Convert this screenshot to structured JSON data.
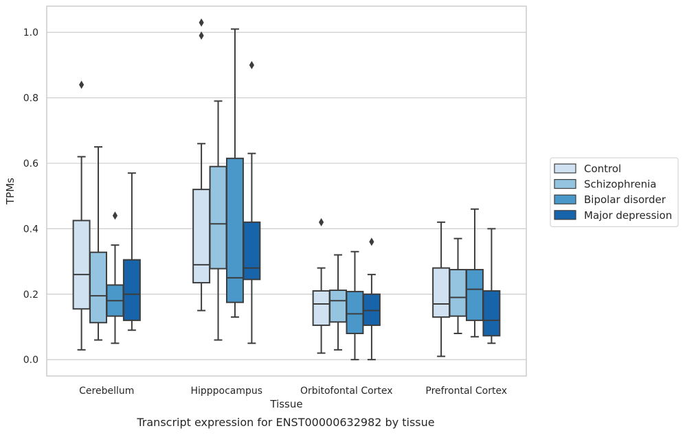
{
  "caption": "Transcript expression for ENST00000632982 by tissue",
  "chart_data": {
    "type": "boxplot",
    "xlabel": "Tissue",
    "ylabel": "TPMs",
    "ylim": [
      -0.05,
      1.08
    ],
    "yticks": [
      0.0,
      0.2,
      0.4,
      0.6,
      0.8,
      1.0
    ],
    "ytick_labels": [
      "0.0",
      "0.2",
      "0.4",
      "0.6",
      "0.8",
      "1.0"
    ],
    "grid": "horizontal",
    "legend_position": "right, outside plot",
    "categories": [
      "Cerebellum",
      "Hipppocampus",
      "Orbitofontal Cortex",
      "Prefrontal Cortex"
    ],
    "series": [
      {
        "name": "Control",
        "color": "#d0e1f2",
        "boxes": [
          {
            "whislo": 0.03,
            "q1": 0.155,
            "med": 0.26,
            "q3": 0.425,
            "whishi": 0.62,
            "fliers": [
              0.84
            ]
          },
          {
            "whislo": 0.15,
            "q1": 0.235,
            "med": 0.29,
            "q3": 0.52,
            "whishi": 0.66,
            "fliers": [
              0.99,
              1.03
            ]
          },
          {
            "whislo": 0.02,
            "q1": 0.105,
            "med": 0.17,
            "q3": 0.21,
            "whishi": 0.28,
            "fliers": [
              0.42
            ]
          },
          {
            "whislo": 0.01,
            "q1": 0.13,
            "med": 0.17,
            "q3": 0.28,
            "whishi": 0.42,
            "fliers": []
          }
        ]
      },
      {
        "name": "Schizophrenia",
        "color": "#94c4df",
        "boxes": [
          {
            "whislo": 0.06,
            "q1": 0.113,
            "med": 0.195,
            "q3": 0.328,
            "whishi": 0.65,
            "fliers": []
          },
          {
            "whislo": 0.06,
            "q1": 0.278,
            "med": 0.415,
            "q3": 0.59,
            "whishi": 0.79,
            "fliers": []
          },
          {
            "whislo": 0.03,
            "q1": 0.115,
            "med": 0.18,
            "q3": 0.212,
            "whishi": 0.32,
            "fliers": []
          },
          {
            "whislo": 0.08,
            "q1": 0.133,
            "med": 0.19,
            "q3": 0.275,
            "whishi": 0.37,
            "fliers": []
          }
        ]
      },
      {
        "name": "Bipolar disorder",
        "color": "#4a98c9",
        "boxes": [
          {
            "whislo": 0.05,
            "q1": 0.133,
            "med": 0.18,
            "q3": 0.228,
            "whishi": 0.35,
            "fliers": [
              0.44
            ]
          },
          {
            "whislo": 0.13,
            "q1": 0.175,
            "med": 0.25,
            "q3": 0.615,
            "whishi": 1.01,
            "fliers": []
          },
          {
            "whislo": 0.0,
            "q1": 0.08,
            "med": 0.14,
            "q3": 0.208,
            "whishi": 0.33,
            "fliers": []
          },
          {
            "whislo": 0.07,
            "q1": 0.12,
            "med": 0.215,
            "q3": 0.275,
            "whishi": 0.46,
            "fliers": []
          }
        ]
      },
      {
        "name": "Major depression",
        "color": "#1764ab",
        "boxes": [
          {
            "whislo": 0.09,
            "q1": 0.12,
            "med": 0.2,
            "q3": 0.305,
            "whishi": 0.57,
            "fliers": []
          },
          {
            "whislo": 0.05,
            "q1": 0.245,
            "med": 0.28,
            "q3": 0.42,
            "whishi": 0.63,
            "fliers": [
              0.9
            ]
          },
          {
            "whislo": 0.0,
            "q1": 0.105,
            "med": 0.15,
            "q3": 0.2,
            "whishi": 0.26,
            "fliers": [
              0.36
            ]
          },
          {
            "whislo": 0.05,
            "q1": 0.073,
            "med": 0.12,
            "q3": 0.21,
            "whishi": 0.4,
            "fliers": []
          }
        ]
      }
    ]
  }
}
